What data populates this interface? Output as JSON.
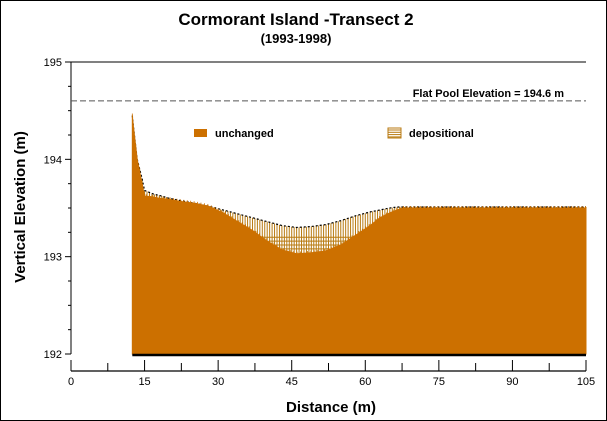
{
  "chart_data": {
    "type": "area",
    "title": "Cormorant Island -Transect 2",
    "subtitle": "(1993-1998)",
    "xlabel": "Distance (m)",
    "ylabel": "Vertical Elevation (m)",
    "xlim": [
      0,
      105
    ],
    "ylim": [
      192,
      195
    ],
    "xticks": [
      0,
      15,
      30,
      45,
      60,
      75,
      90,
      105
    ],
    "yticks": [
      192,
      193,
      194,
      195
    ],
    "grid": false,
    "legend_position": "top",
    "colors": {
      "unchanged": "#cc7000",
      "depositional": "#b87a10"
    },
    "reference_line": {
      "y": 194.6,
      "label": "Flat Pool Elevation = 194.6 m"
    },
    "series": [
      {
        "name": "unchanged",
        "x": [
          12.5,
          12.7,
          13.5,
          14.5,
          15.0,
          16,
          17,
          18,
          20,
          22,
          25,
          28,
          31,
          34,
          37,
          40,
          43,
          46,
          49,
          52,
          55,
          58,
          61,
          63,
          65,
          66.5,
          67.5,
          70,
          75,
          80,
          85,
          90,
          95,
          100,
          105
        ],
        "y": [
          194.45,
          194.35,
          194.0,
          193.75,
          193.62,
          193.62,
          193.61,
          193.6,
          193.59,
          193.57,
          193.55,
          193.52,
          193.45,
          193.36,
          193.27,
          193.16,
          193.07,
          193.03,
          193.04,
          193.06,
          193.12,
          193.22,
          193.32,
          193.4,
          193.45,
          193.48,
          193.5,
          193.5,
          193.5,
          193.5,
          193.5,
          193.5,
          193.5,
          193.5,
          193.5
        ]
      },
      {
        "name": "depositional",
        "x": [
          12.5,
          12.7,
          13.5,
          14.5,
          15.0,
          16,
          17,
          18,
          20,
          22,
          25,
          28,
          31,
          34,
          37,
          40,
          43,
          46,
          49,
          52,
          55,
          58,
          61,
          63,
          65,
          66.5,
          67.5,
          70,
          75,
          80,
          85,
          90,
          95,
          100,
          105
        ],
        "y": [
          194.45,
          194.35,
          194.0,
          193.8,
          193.68,
          193.66,
          193.64,
          193.63,
          193.6,
          193.58,
          193.55,
          193.52,
          193.48,
          193.44,
          193.4,
          193.36,
          193.32,
          193.3,
          193.31,
          193.33,
          193.37,
          193.42,
          193.46,
          193.48,
          193.5,
          193.51,
          193.51,
          193.51,
          193.51,
          193.51,
          193.51,
          193.51,
          193.51,
          193.51,
          193.51
        ]
      }
    ]
  }
}
